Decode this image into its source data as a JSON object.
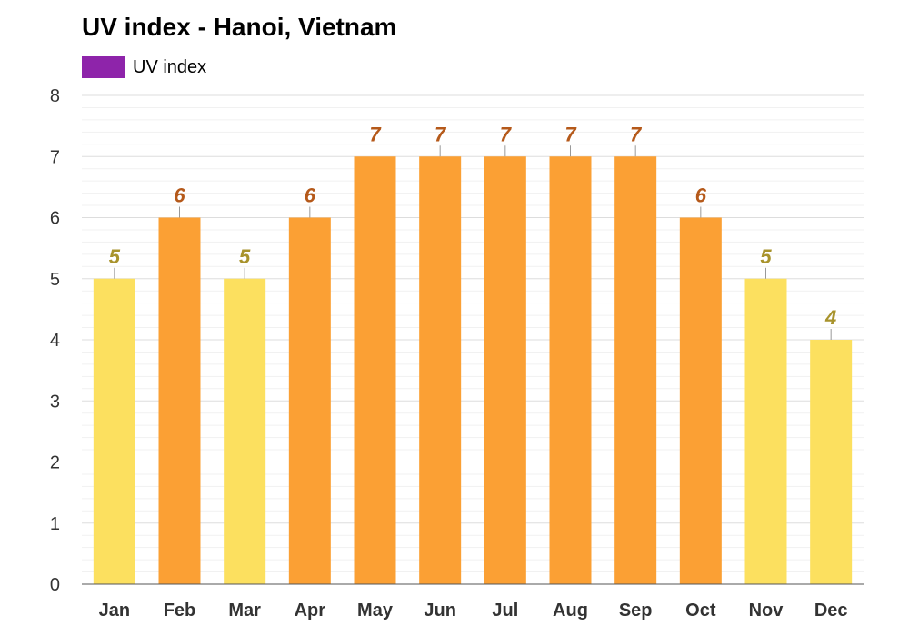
{
  "title": "UV index - Hanoi, Vietnam",
  "legend": {
    "label": "UV index",
    "color": "#8e24aa"
  },
  "colors": {
    "moderate_bar": "#fce05f",
    "high_bar": "#fba034",
    "moderate_label": "#a8932c",
    "high_label": "#b5591a",
    "grid_major": "#dddddd",
    "grid_minor": "#f1f1f1",
    "axis": "#555555"
  },
  "chart_data": {
    "type": "bar",
    "title": "UV index - Hanoi, Vietnam",
    "categories": [
      "Jan",
      "Feb",
      "Mar",
      "Apr",
      "May",
      "Jun",
      "Jul",
      "Aug",
      "Sep",
      "Oct",
      "Nov",
      "Dec"
    ],
    "series": [
      {
        "name": "UV index",
        "values": [
          5,
          6,
          5,
          6,
          7,
          7,
          7,
          7,
          7,
          6,
          5,
          4
        ]
      }
    ],
    "ylim": [
      0,
      8
    ],
    "yticks": [
      "0",
      "1",
      "2",
      "3",
      "4",
      "5",
      "6",
      "7",
      "8"
    ],
    "data_labels": [
      "5",
      "6",
      "5",
      "6",
      "7",
      "7",
      "7",
      "7",
      "7",
      "6",
      "5",
      "4"
    ],
    "grid": true,
    "legend_position": "top-left",
    "xlabel": "",
    "ylabel": ""
  }
}
